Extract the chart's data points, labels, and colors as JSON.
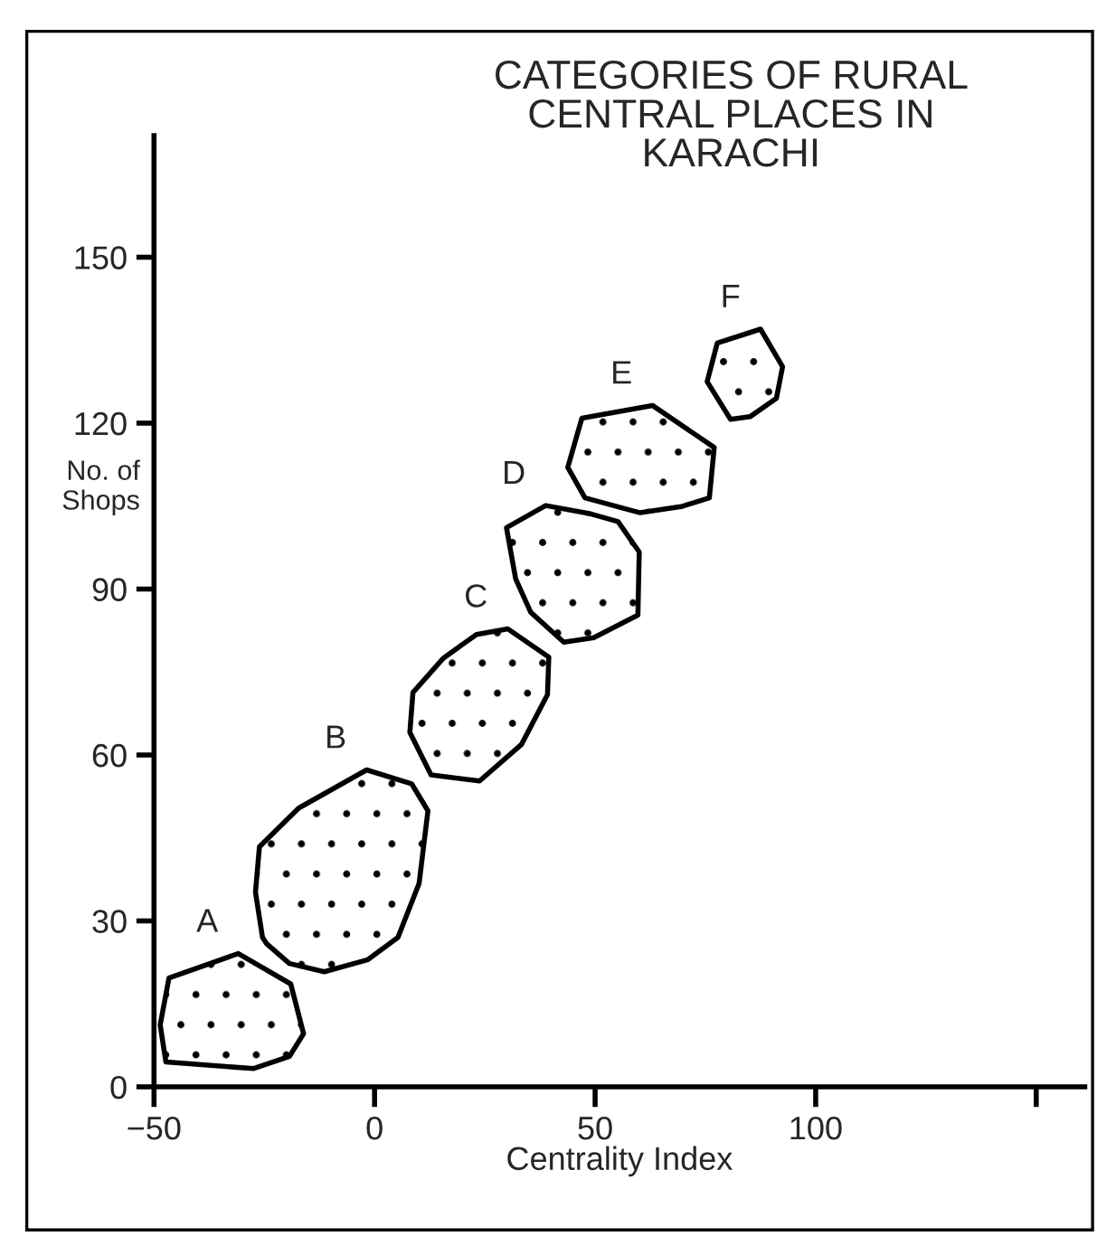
{
  "chart_data": {
    "type": "area",
    "title": "CATEGORIES OF RURAL\nCENTRAL PLACES IN\nKARACHI",
    "xlabel": "Centrality Index",
    "ylabel": "No. of\nShops",
    "xlim": [
      -50,
      161
    ],
    "ylim": [
      0,
      172
    ],
    "xticks": [
      -50,
      0,
      50,
      100,
      {
        "value": 150,
        "label": null
      }
    ],
    "yticks": [
      0,
      30,
      60,
      90,
      120,
      150
    ],
    "grid": false,
    "legend": false,
    "marker": "none",
    "line_style": "solid",
    "series": [
      {
        "name": "A",
        "color": "#000000",
        "x": [
          -46.6,
          -30.9,
          -19.0,
          -16.1,
          -19.3,
          -27.5,
          -47.3,
          -48.6,
          -46.6
        ],
        "values": [
          19.7,
          24.1,
          18.6,
          9.6,
          5.5,
          3.3,
          4.5,
          11.2,
          19.7
        ]
      },
      {
        "name": "B",
        "color": "#000000",
        "x": [
          -26.1,
          -17.2,
          -1.8,
          8.4,
          12.1,
          10.1,
          5.3,
          -1.5,
          -11.4,
          -19.3,
          -24.5,
          -25.4,
          -27.0,
          -26.1
        ],
        "values": [
          43.4,
          50.4,
          57.3,
          54.8,
          49.9,
          36.8,
          27.0,
          23.0,
          20.8,
          22.3,
          25.9,
          27.0,
          35.2,
          43.4
        ]
      },
      {
        "name": "C",
        "color": "#000000",
        "x": [
          8.7,
          15.6,
          23.1,
          30.2,
          39.5,
          39.2,
          33.3,
          23.8,
          12.8,
          8.0,
          8.7
        ],
        "values": [
          71.3,
          77.5,
          81.8,
          82.8,
          77.7,
          70.9,
          61.9,
          55.3,
          56.4,
          64.1,
          71.3
        ]
      },
      {
        "name": "D",
        "color": "#000000",
        "x": [
          29.9,
          38.8,
          49.0,
          55.2,
          60.0,
          59.7,
          49.7,
          42.9,
          35.4,
          32.0,
          29.9
        ],
        "values": [
          101.1,
          105.1,
          103.6,
          102.2,
          96.7,
          85.3,
          81.2,
          80.4,
          85.8,
          91.8,
          101.1
        ]
      },
      {
        "name": "E",
        "color": "#000000",
        "x": [
          47.0,
          63.0,
          77.0,
          75.9,
          69.5,
          60.2,
          47.7,
          43.8,
          47.0
        ],
        "values": [
          120.9,
          123.2,
          115.6,
          106.5,
          104.9,
          103.8,
          106.5,
          112.0,
          120.9
        ]
      },
      {
        "name": "F",
        "color": "#000000",
        "x": [
          77.7,
          87.5,
          92.5,
          91.1,
          85.2,
          80.7,
          75.4,
          77.7
        ],
        "values": [
          134.5,
          137.0,
          130.2,
          124.5,
          121.2,
          120.7,
          127.5,
          134.5
        ]
      }
    ]
  }
}
